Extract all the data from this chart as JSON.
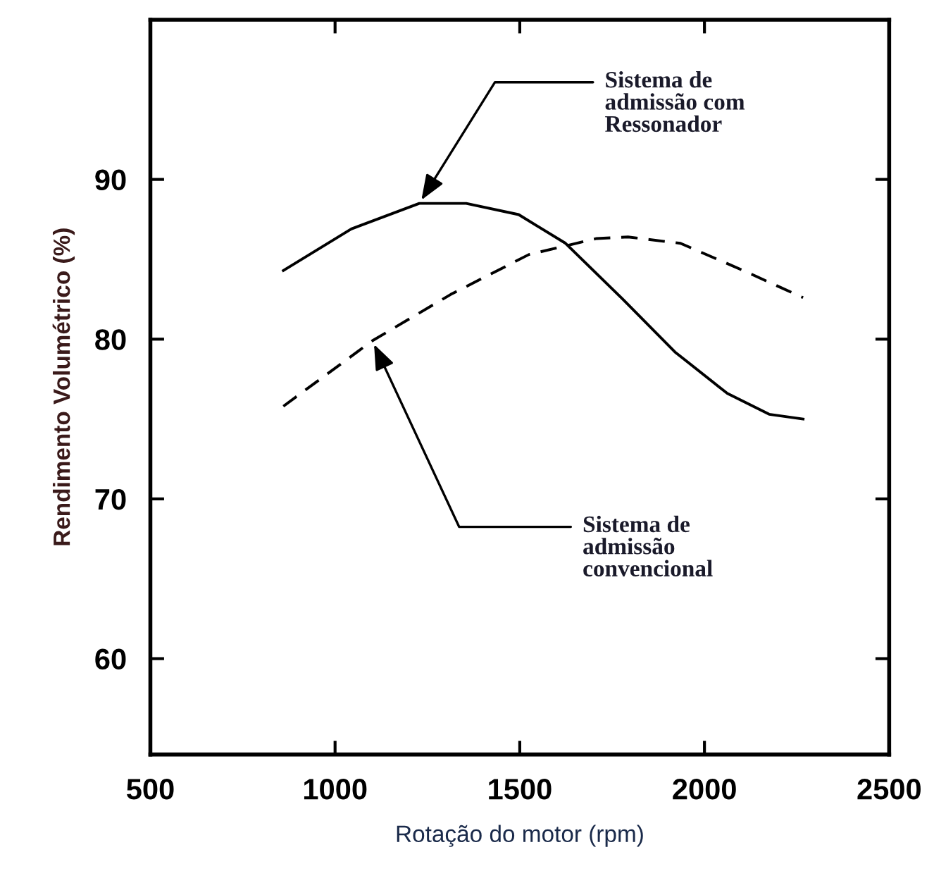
{
  "chart_data": {
    "type": "line",
    "xlabel": "Rotação do motor (rpm)",
    "ylabel": "Rendimento Volumétrico (%)",
    "xlim": [
      500,
      2500
    ],
    "xticks": [
      500,
      1000,
      1500,
      2000,
      2500
    ],
    "ylim": [
      54,
      100
    ],
    "yticks": [
      60,
      70,
      80,
      90
    ],
    "grid": false,
    "legend": false,
    "marker": "none",
    "series": [
      {
        "color": "#000000",
        "line_style": "solid",
        "x": [
          860,
          1044,
          1228,
          1355,
          1497,
          1624,
          1779,
          1920,
          2062,
          2175,
          2267
        ],
        "values": [
          84.3,
          86.9,
          88.5,
          88.5,
          87.8,
          86.0,
          82.5,
          79.2,
          76.6,
          75.3,
          75.0
        ]
      },
      {
        "color": "#000000",
        "line_style": "dashed",
        "x": [
          860,
          1101,
          1313,
          1525,
          1708,
          1793,
          1935,
          2105,
          2267
        ],
        "values": [
          75.8,
          79.9,
          82.8,
          85.3,
          86.3,
          86.4,
          86.0,
          84.3,
          82.6
        ]
      }
    ],
    "annotations": [
      {
        "text": "Sistema de\nadmissão com\nRessonador",
        "x": 1228,
        "y": 88.5
      },
      {
        "text": "Sistema de\nadmissão\nconvencional",
        "x": 1101,
        "y": 79.9
      }
    ]
  }
}
